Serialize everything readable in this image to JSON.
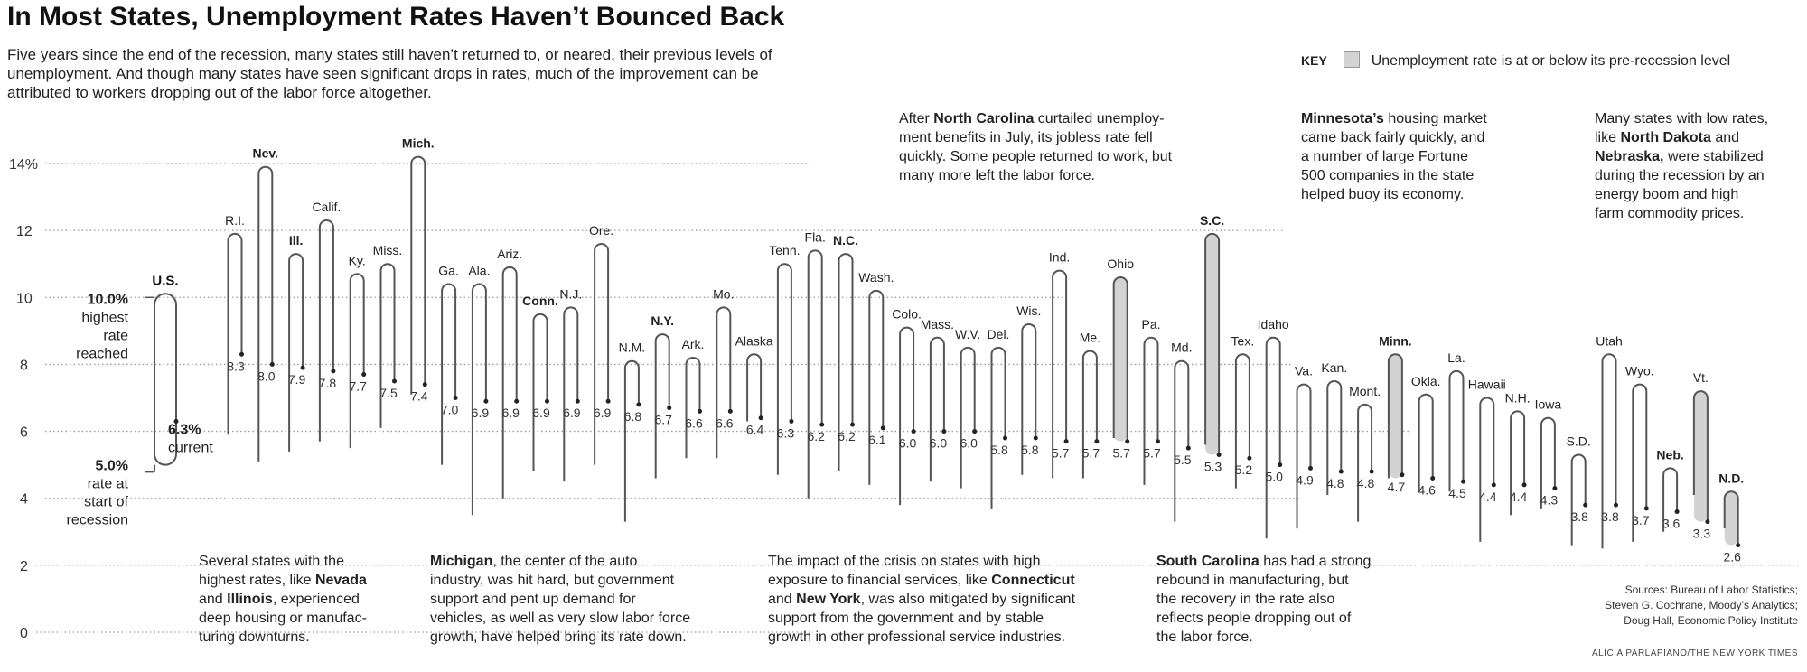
{
  "title": "In Most States, Unemployment Rates Haven’t Bounced Back",
  "subtitle": "Five years since the end of the recession, many states still haven’t returned to, or neared, their previous levels of unemployment. And though many states have seen significant drops in rates, much of the improvement can be attributed to workers dropping out of the labor force altogether.",
  "key": {
    "label": "KEY",
    "text": "Unemployment rate is at or below its pre-recession level",
    "swatch_color": "#d3d3d3"
  },
  "annotations": {
    "nc": "After <b>North Carolina</b> curtailed unemploy-<br>ment benefits in July, its jobless rate fell<br>quickly. Some people returned to work, but<br>many more left the labor force.",
    "mn": "<b>Minnesota’s</b> housing market<br>came back fairly quickly, and<br>a number of large Fortune<br>500 companies in the state<br>helped buoy its economy.",
    "nd": "Many states with low rates,<br>like <b>North Dakota</b> and<br><b>Nebraska,</b> were stabilized<br>during the recession by an<br>energy boom and high<br>farm commodity prices.",
    "nv": "Several states with the<br>highest rates, like <b>Nevada</b><br>and <b>Illinois</b>, experienced<br>deep housing or manufac-<br>turing downturns.",
    "mi": "<b>Michigan</b>, the center of the auto<br>industry, was hit hard, but government<br>support and pent up demand for<br>vehicles, as well as very slow labor force<br>growth, have helped bring its rate down.",
    "ct": "The impact of the crisis on states with high<br>exposure to financial services, like <b>Connecticut</b><br>and <b>New York</b>, was also mitigated by significant<br>support from the government and by stable<br>growth in other professional service industries.",
    "sc": "<b>South Carolina</b> has had a strong<br>rebound in manufacturing, but<br>the recovery in the rate also<br>reflects people dropping out of<br>the labor force."
  },
  "sources": "Sources: Bureau of Labor Statistics;\nSteven G. Cochrane, Moody’s Analytics;\nDoug Hall, Economic Policy Institute",
  "credit": "ALICIA PARLAPIANO/THE NEW YORK TIMES",
  "chart_data": {
    "type": "range",
    "y_ticks": [
      {
        "value": 0,
        "label": "0"
      },
      {
        "value": 2,
        "label": "2"
      },
      {
        "value": 4,
        "label": "4"
      },
      {
        "value": 6,
        "label": "6"
      },
      {
        "value": 8,
        "label": "8"
      },
      {
        "value": 10,
        "label": "10"
      },
      {
        "value": 12,
        "label": "12"
      },
      {
        "value": 14,
        "label": "14%"
      }
    ],
    "ylim": [
      0,
      14.8
    ],
    "us": {
      "label": "U.S.",
      "start": 5.0,
      "peak": 10.0,
      "current": 6.3,
      "peak_label": [
        "10.0%",
        "highest",
        "rate",
        "reached"
      ],
      "start_label": [
        "5.0%",
        "rate at",
        "start of",
        "recession"
      ],
      "current_label": [
        "6.3%",
        "current"
      ]
    },
    "states": [
      {
        "name": "R.I.",
        "start": 5.9,
        "peak": 11.9,
        "current": 8.3,
        "bold": false,
        "highlight": false
      },
      {
        "name": "Nev.",
        "start": 5.1,
        "peak": 13.9,
        "current": 8.0,
        "bold": true,
        "highlight": false
      },
      {
        "name": "Ill.",
        "start": 5.4,
        "peak": 11.3,
        "current": 7.9,
        "bold": true,
        "highlight": false
      },
      {
        "name": "Calif.",
        "start": 5.7,
        "peak": 12.3,
        "current": 7.8,
        "bold": false,
        "highlight": false
      },
      {
        "name": "Ky.",
        "start": 5.5,
        "peak": 10.7,
        "current": 7.7,
        "bold": false,
        "highlight": false
      },
      {
        "name": "Miss.",
        "start": 6.1,
        "peak": 11.0,
        "current": 7.5,
        "bold": false,
        "highlight": false
      },
      {
        "name": "Mich.",
        "start": 7.1,
        "peak": 14.2,
        "current": 7.4,
        "bold": true,
        "highlight": false
      },
      {
        "name": "Ga.",
        "start": 5.0,
        "peak": 10.4,
        "current": 7.0,
        "bold": false,
        "highlight": false
      },
      {
        "name": "Ala.",
        "start": 3.5,
        "peak": 10.4,
        "current": 6.9,
        "bold": false,
        "highlight": false
      },
      {
        "name": "Ariz.",
        "start": 4.0,
        "peak": 10.9,
        "current": 6.9,
        "bold": false,
        "highlight": false
      },
      {
        "name": "Conn.",
        "start": 4.8,
        "peak": 9.5,
        "current": 6.9,
        "bold": true,
        "highlight": false
      },
      {
        "name": "N.J.",
        "start": 4.5,
        "peak": 9.7,
        "current": 6.9,
        "bold": false,
        "highlight": false
      },
      {
        "name": "Ore.",
        "start": 5.0,
        "peak": 11.6,
        "current": 6.9,
        "bold": false,
        "highlight": false
      },
      {
        "name": "N.M.",
        "start": 3.3,
        "peak": 8.1,
        "current": 6.8,
        "bold": false,
        "highlight": false
      },
      {
        "name": "N.Y.",
        "start": 4.6,
        "peak": 8.9,
        "current": 6.7,
        "bold": true,
        "highlight": false
      },
      {
        "name": "Ark.",
        "start": 5.2,
        "peak": 8.2,
        "current": 6.6,
        "bold": false,
        "highlight": false
      },
      {
        "name": "Mo.",
        "start": 5.2,
        "peak": 9.7,
        "current": 6.6,
        "bold": false,
        "highlight": false
      },
      {
        "name": "Alaska",
        "start": 6.3,
        "peak": 8.3,
        "current": 6.4,
        "bold": false,
        "highlight": false
      },
      {
        "name": "Tenn.",
        "start": 4.7,
        "peak": 11.0,
        "current": 6.3,
        "bold": false,
        "highlight": false
      },
      {
        "name": "Fla.",
        "start": 4.0,
        "peak": 11.4,
        "current": 6.2,
        "bold": false,
        "highlight": false
      },
      {
        "name": "N.C.",
        "start": 4.8,
        "peak": 11.3,
        "current": 6.2,
        "bold": true,
        "highlight": false
      },
      {
        "name": "Wash.",
        "start": 4.4,
        "peak": 10.2,
        "current": 6.1,
        "bold": false,
        "highlight": false
      },
      {
        "name": "Colo.",
        "start": 3.8,
        "peak": 9.1,
        "current": 6.0,
        "bold": false,
        "highlight": false
      },
      {
        "name": "Mass.",
        "start": 4.5,
        "peak": 8.8,
        "current": 6.0,
        "bold": false,
        "highlight": false
      },
      {
        "name": "W.V.",
        "start": 4.3,
        "peak": 8.5,
        "current": 6.0,
        "bold": false,
        "highlight": false
      },
      {
        "name": "Del.",
        "start": 3.7,
        "peak": 8.5,
        "current": 5.8,
        "bold": false,
        "highlight": false
      },
      {
        "name": "Wis.",
        "start": 4.7,
        "peak": 9.2,
        "current": 5.8,
        "bold": false,
        "highlight": false
      },
      {
        "name": "Ind.",
        "start": 4.6,
        "peak": 10.8,
        "current": 5.7,
        "bold": false,
        "highlight": false
      },
      {
        "name": "Me.",
        "start": 4.6,
        "peak": 8.4,
        "current": 5.7,
        "bold": false,
        "highlight": false
      },
      {
        "name": "Ohio",
        "start": 5.8,
        "peak": 10.6,
        "current": 5.7,
        "bold": false,
        "highlight": true
      },
      {
        "name": "Pa.",
        "start": 4.4,
        "peak": 8.8,
        "current": 5.7,
        "bold": false,
        "highlight": false
      },
      {
        "name": "Md.",
        "start": 3.3,
        "peak": 8.1,
        "current": 5.5,
        "bold": false,
        "highlight": false
      },
      {
        "name": "S.C.",
        "start": 5.6,
        "peak": 11.9,
        "current": 5.3,
        "bold": true,
        "highlight": true
      },
      {
        "name": "Tex.",
        "start": 4.3,
        "peak": 8.3,
        "current": 5.2,
        "bold": false,
        "highlight": false
      },
      {
        "name": "Idaho",
        "start": 2.8,
        "peak": 8.8,
        "current": 5.0,
        "bold": false,
        "highlight": false
      },
      {
        "name": "Va.",
        "start": 3.1,
        "peak": 7.4,
        "current": 4.9,
        "bold": false,
        "highlight": false
      },
      {
        "name": "Kan.",
        "start": 4.1,
        "peak": 7.5,
        "current": 4.8,
        "bold": false,
        "highlight": false
      },
      {
        "name": "Mont.",
        "start": 3.3,
        "peak": 6.8,
        "current": 4.8,
        "bold": false,
        "highlight": false
      },
      {
        "name": "Minn.",
        "start": 4.6,
        "peak": 8.3,
        "current": 4.7,
        "bold": true,
        "highlight": true
      },
      {
        "name": "Okla.",
        "start": 4.2,
        "peak": 7.1,
        "current": 4.6,
        "bold": false,
        "highlight": false
      },
      {
        "name": "La.",
        "start": 4.2,
        "peak": 7.8,
        "current": 4.5,
        "bold": false,
        "highlight": false
      },
      {
        "name": "Hawaii",
        "start": 2.7,
        "peak": 7.0,
        "current": 4.4,
        "bold": false,
        "highlight": false
      },
      {
        "name": "N.H.",
        "start": 3.5,
        "peak": 6.6,
        "current": 4.4,
        "bold": false,
        "highlight": false
      },
      {
        "name": "Iowa",
        "start": 3.7,
        "peak": 6.4,
        "current": 4.3,
        "bold": false,
        "highlight": false
      },
      {
        "name": "S.D.",
        "start": 2.6,
        "peak": 5.3,
        "current": 3.8,
        "bold": false,
        "highlight": false
      },
      {
        "name": "Utah",
        "start": 2.5,
        "peak": 8.3,
        "current": 3.8,
        "bold": false,
        "highlight": false
      },
      {
        "name": "Wyo.",
        "start": 2.7,
        "peak": 7.4,
        "current": 3.7,
        "bold": false,
        "highlight": false
      },
      {
        "name": "Neb.",
        "start": 3.0,
        "peak": 4.9,
        "current": 3.6,
        "bold": true,
        "highlight": false
      },
      {
        "name": "Vt.",
        "start": 4.1,
        "peak": 7.2,
        "current": 3.3,
        "bold": false,
        "highlight": true
      },
      {
        "name": "N.D.",
        "start": 3.1,
        "peak": 4.2,
        "current": 2.6,
        "bold": true,
        "highlight": true
      }
    ]
  }
}
